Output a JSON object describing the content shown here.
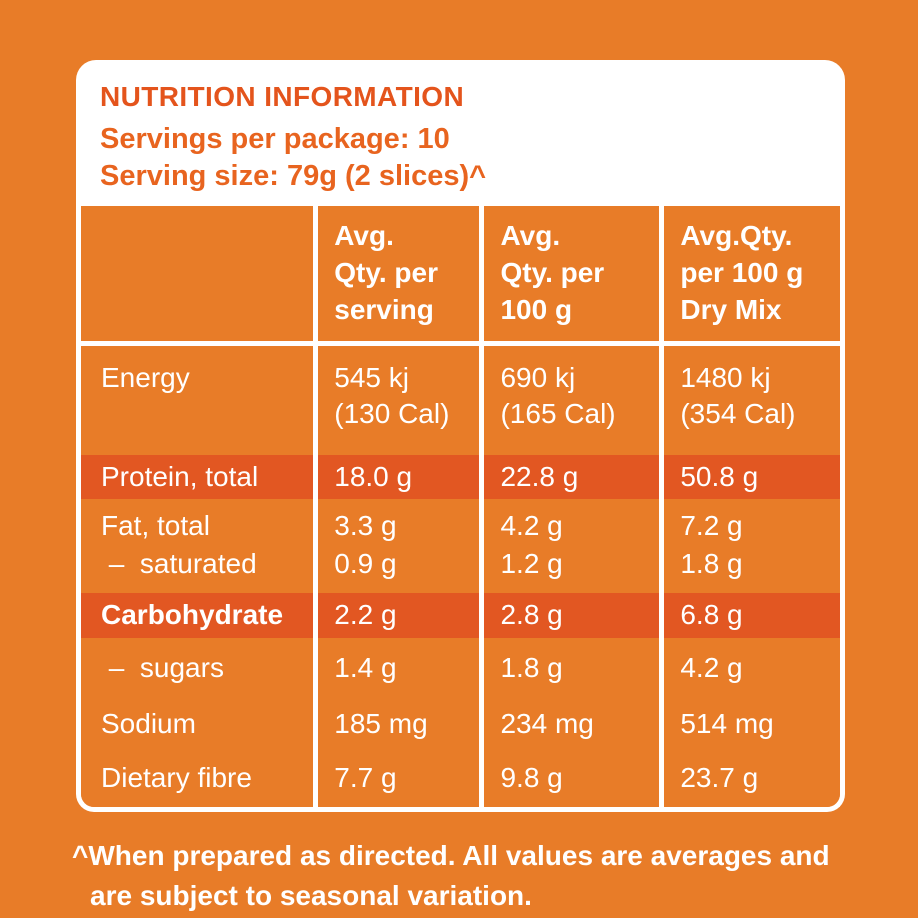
{
  "colors": {
    "background": "#E87C28",
    "highlight_band": "#E25722",
    "panel_background": "#FFFFFF",
    "title_text": "#E4541C",
    "subtitle_text": "#E8641F",
    "table_text": "#FFFFFF"
  },
  "panel": {
    "title": "NUTRITION INFORMATION",
    "servings_per_package": "Servings per package: 10",
    "serving_size": "Serving size: 79g (2 slices)^"
  },
  "table": {
    "columns": [
      "",
      "Avg.\nQty. per\nserving",
      "Avg.\nQty. per\n100 g",
      "Avg.Qty.\nper 100 g\nDry Mix"
    ],
    "rows": [
      {
        "label": "Energy",
        "values": [
          "545 kj\n(130 Cal)",
          "690 kj\n(165 Cal)",
          "1480 kj\n(354 Cal)"
        ]
      },
      {
        "label": "Protein, total",
        "values": [
          "18.0 g",
          "22.8 g",
          "50.8 g"
        ]
      },
      {
        "label": "Fat, total\n –  saturated",
        "values": [
          "3.3 g\n0.9 g",
          "4.2 g\n1.2 g",
          "7.2 g\n1.8 g"
        ]
      },
      {
        "label": "Carbohydrate",
        "values": [
          "2.2 g",
          "2.8 g",
          "6.8 g"
        ]
      },
      {
        "label": " –  sugars",
        "values": [
          "1.4 g",
          "1.8 g",
          "4.2 g"
        ]
      },
      {
        "label": "Sodium",
        "values": [
          "185 mg",
          "234 mg",
          "514 mg"
        ]
      },
      {
        "label": "Dietary fibre",
        "values": [
          "7.7 g",
          "9.8 g",
          "23.7 g"
        ]
      }
    ]
  },
  "footnote": "^When prepared as directed. All values are averages and\nare subject to seasonal variation."
}
